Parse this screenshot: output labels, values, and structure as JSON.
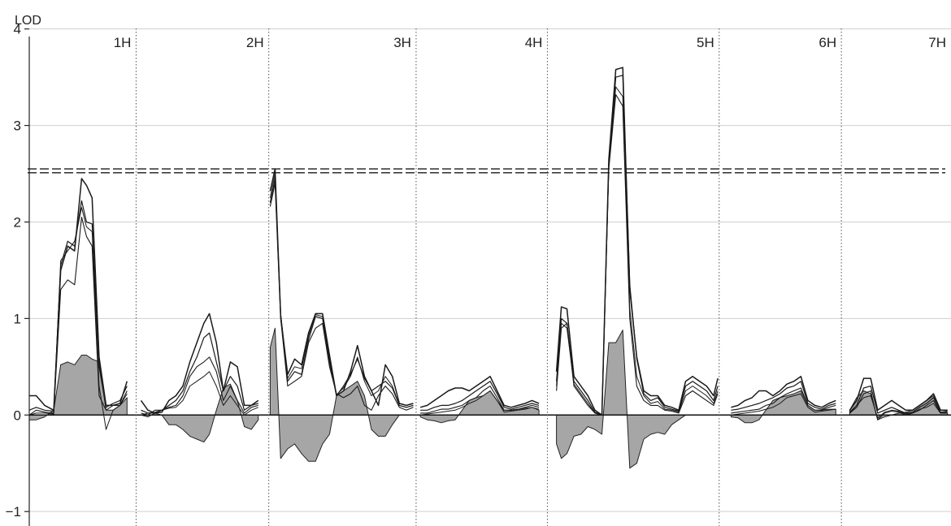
{
  "chart_data": {
    "type": "line",
    "ylabel": "LOD",
    "xlabel": "",
    "ylim": [
      -1.15,
      4.3
    ],
    "xlim": [
      0,
      13.2
    ],
    "yticks": [
      {
        "value": -1,
        "label": "−1"
      },
      {
        "value": 0,
        "label": "0"
      },
      {
        "value": 1,
        "label": "1"
      },
      {
        "value": 2,
        "label": "2"
      },
      {
        "value": 3,
        "label": "3"
      },
      {
        "value": 4,
        "label": "4"
      }
    ],
    "grid": true,
    "thresholds": [
      2.51,
      2.55
    ],
    "chromosomes": [
      {
        "label": "1H",
        "boundary": 1.53
      },
      {
        "label": "2H",
        "boundary": 3.43
      },
      {
        "label": "3H",
        "boundary": 5.54
      },
      {
        "label": "4H",
        "boundary": 7.42
      },
      {
        "label": "5H",
        "boundary": 9.88
      },
      {
        "label": "6H",
        "boundary": 11.63
      },
      {
        "label": "7H",
        "boundary": 13.2
      }
    ],
    "segments": [
      {
        "x": [
          0.0,
          0.1,
          0.22,
          0.35,
          0.45,
          0.55,
          0.65,
          0.75,
          0.82,
          0.9,
          1.0,
          1.1,
          1.2,
          1.3,
          1.4
        ],
        "s1": [
          0.2,
          0.2,
          0.1,
          0.05,
          1.5,
          1.75,
          1.7,
          2.45,
          2.38,
          2.25,
          0.6,
          0.1,
          0.1,
          0.12,
          0.35
        ],
        "s2": [
          0.05,
          0.08,
          0.05,
          0.04,
          1.55,
          1.8,
          1.75,
          2.22,
          2.0,
          1.98,
          0.5,
          0.08,
          0.12,
          0.15,
          0.3
        ],
        "s3": [
          0.0,
          0.05,
          0.03,
          0.02,
          1.3,
          1.4,
          1.35,
          2.05,
          1.85,
          1.75,
          0.2,
          0.05,
          0.1,
          0.1,
          0.25
        ],
        "s4": [
          0.0,
          0.02,
          0.02,
          0.01,
          1.6,
          1.7,
          1.8,
          2.15,
          1.95,
          1.9,
          0.3,
          -0.15,
          0.05,
          0.1,
          0.22
        ],
        "shade": [
          -0.05,
          -0.05,
          -0.02,
          0.05,
          0.52,
          0.55,
          0.52,
          0.62,
          0.62,
          0.58,
          0.55,
          0.05,
          0.05,
          0.1,
          0.18
        ]
      },
      {
        "x": [
          1.6,
          1.7,
          1.8,
          1.9,
          2.0,
          2.1,
          2.2,
          2.3,
          2.4,
          2.5,
          2.58,
          2.68,
          2.78,
          2.88,
          2.98,
          3.08,
          3.18,
          3.28
        ],
        "s1": [
          0.15,
          0.05,
          0.02,
          0.03,
          0.15,
          0.2,
          0.3,
          0.55,
          0.75,
          0.95,
          1.05,
          0.75,
          0.25,
          0.55,
          0.5,
          0.1,
          0.1,
          0.15
        ],
        "s2": [
          0.05,
          0.02,
          0.02,
          0.05,
          0.1,
          0.15,
          0.25,
          0.45,
          0.6,
          0.8,
          0.85,
          0.55,
          0.25,
          0.4,
          0.3,
          0.05,
          0.1,
          0.12
        ],
        "s3": [
          0.02,
          0.0,
          0.05,
          0.05,
          0.08,
          0.1,
          0.2,
          0.4,
          0.5,
          0.55,
          0.6,
          0.45,
          0.15,
          0.3,
          0.15,
          0.02,
          0.08,
          0.1
        ],
        "s4": [
          0.0,
          0.02,
          0.03,
          0.05,
          0.07,
          0.08,
          0.15,
          0.3,
          0.35,
          0.4,
          0.45,
          0.3,
          0.1,
          0.2,
          0.1,
          0.0,
          0.05,
          0.08
        ],
        "shade": [
          0.0,
          -0.02,
          0.02,
          0.0,
          -0.1,
          -0.1,
          -0.15,
          -0.22,
          -0.25,
          -0.28,
          -0.2,
          0.05,
          0.28,
          0.32,
          0.15,
          -0.12,
          -0.15,
          -0.05
        ]
      },
      {
        "x": [
          3.45,
          3.52,
          3.6,
          3.7,
          3.8,
          3.9,
          4.0,
          4.1,
          4.2,
          4.3,
          4.4,
          4.5,
          4.6,
          4.7,
          4.8,
          4.9,
          5.0,
          5.1,
          5.2,
          5.3,
          5.4,
          5.5
        ],
        "s1": [
          2.32,
          2.55,
          1.02,
          0.42,
          0.58,
          0.52,
          0.85,
          1.05,
          1.05,
          0.62,
          0.2,
          0.25,
          0.45,
          0.72,
          0.4,
          0.25,
          0.1,
          0.52,
          0.4,
          0.12,
          0.1,
          0.12
        ],
        "s2": [
          2.2,
          2.45,
          1.05,
          0.35,
          0.45,
          0.42,
          0.78,
          1.02,
          1.0,
          0.55,
          0.2,
          0.3,
          0.42,
          0.58,
          0.38,
          0.25,
          0.3,
          0.35,
          0.28,
          0.1,
          0.08,
          0.1
        ],
        "s3": [
          2.16,
          2.4,
          1.0,
          0.3,
          0.35,
          0.4,
          0.75,
          0.9,
          0.95,
          0.5,
          0.22,
          0.18,
          0.22,
          0.3,
          0.1,
          0.05,
          0.2,
          0.3,
          0.22,
          0.08,
          0.05,
          0.08
        ],
        "s4": [
          2.25,
          2.5,
          1.03,
          0.38,
          0.5,
          0.48,
          0.82,
          1.04,
          1.02,
          0.58,
          0.21,
          0.28,
          0.4,
          0.6,
          0.35,
          0.2,
          0.25,
          0.4,
          0.3,
          0.1,
          0.08,
          0.1
        ],
        "shade": [
          0.7,
          0.9,
          -0.45,
          -0.35,
          -0.3,
          -0.4,
          -0.48,
          -0.48,
          -0.3,
          -0.2,
          0.2,
          0.25,
          0.3,
          0.35,
          0.2,
          -0.15,
          -0.22,
          -0.22,
          -0.1,
          0.0,
          0.0,
          0.0
        ]
      },
      {
        "x": [
          5.6,
          5.7,
          5.8,
          5.9,
          6.0,
          6.1,
          6.2,
          6.3,
          6.4,
          6.5,
          6.6,
          6.7,
          6.8,
          6.9,
          7.0,
          7.1,
          7.2,
          7.3
        ],
        "s1": [
          0.08,
          0.1,
          0.15,
          0.2,
          0.25,
          0.28,
          0.28,
          0.25,
          0.3,
          0.35,
          0.4,
          0.25,
          0.1,
          0.08,
          0.1,
          0.12,
          0.15,
          0.12
        ],
        "s2": [
          0.05,
          0.05,
          0.08,
          0.1,
          0.1,
          0.12,
          0.15,
          0.2,
          0.25,
          0.3,
          0.35,
          0.22,
          0.08,
          0.06,
          0.08,
          0.1,
          0.12,
          0.1
        ],
        "s3": [
          0.02,
          0.02,
          0.04,
          0.06,
          0.06,
          0.08,
          0.1,
          0.15,
          0.18,
          0.25,
          0.3,
          0.18,
          0.05,
          0.05,
          0.06,
          0.08,
          0.1,
          0.08
        ],
        "s4": [
          0.0,
          0.01,
          0.02,
          0.03,
          0.04,
          0.05,
          0.08,
          0.12,
          0.15,
          0.2,
          0.25,
          0.15,
          0.03,
          0.04,
          0.05,
          0.06,
          0.08,
          0.06
        ],
        "shade": [
          -0.02,
          -0.05,
          -0.06,
          -0.08,
          -0.06,
          -0.05,
          0.05,
          0.15,
          0.18,
          0.2,
          0.25,
          0.15,
          0.05,
          0.05,
          0.06,
          0.07,
          0.08,
          0.05
        ]
      },
      {
        "x": [
          7.55,
          7.62,
          7.7,
          7.8,
          7.9,
          8.0,
          8.1,
          8.2,
          8.3,
          8.4,
          8.5,
          8.6,
          8.7,
          8.8,
          8.9,
          9.0,
          9.1,
          9.2,
          9.3,
          9.4,
          9.5,
          9.6,
          9.7,
          9.8,
          9.86
        ],
        "s1": [
          0.45,
          1.12,
          1.1,
          0.4,
          0.3,
          0.2,
          0.05,
          0.0,
          2.65,
          3.58,
          3.6,
          1.3,
          0.6,
          0.25,
          0.2,
          0.2,
          0.1,
          0.08,
          0.05,
          0.35,
          0.4,
          0.35,
          0.3,
          0.2,
          0.38
        ],
        "s2": [
          0.35,
          1.0,
          0.95,
          0.35,
          0.25,
          0.15,
          0.03,
          0.0,
          2.6,
          3.5,
          3.52,
          1.35,
          0.58,
          0.22,
          0.15,
          0.18,
          0.08,
          0.06,
          0.04,
          0.3,
          0.35,
          0.3,
          0.25,
          0.15,
          0.3
        ],
        "s3": [
          0.25,
          0.9,
          0.95,
          0.3,
          0.2,
          0.1,
          0.02,
          0.0,
          2.55,
          3.32,
          3.2,
          1.0,
          0.3,
          0.15,
          0.1,
          0.1,
          0.05,
          0.04,
          0.02,
          0.2,
          0.25,
          0.2,
          0.15,
          0.1,
          0.22
        ],
        "s4": [
          0.3,
          0.95,
          0.9,
          0.32,
          0.22,
          0.12,
          0.02,
          0.0,
          2.58,
          3.4,
          3.3,
          1.1,
          0.4,
          0.2,
          0.12,
          0.14,
          0.06,
          0.05,
          0.03,
          0.25,
          0.3,
          0.25,
          0.2,
          0.12,
          0.25
        ],
        "shade": [
          -0.3,
          -0.45,
          -0.4,
          -0.22,
          -0.2,
          -0.12,
          -0.15,
          -0.2,
          0.75,
          0.75,
          0.88,
          -0.55,
          -0.5,
          -0.25,
          -0.2,
          -0.18,
          -0.2,
          -0.1,
          -0.05,
          0.0,
          0.0,
          0.0,
          0.0,
          0.0,
          0.0
        ]
      },
      {
        "x": [
          10.05,
          10.15,
          10.25,
          10.35,
          10.45,
          10.55,
          10.65,
          10.75,
          10.85,
          10.95,
          11.05,
          11.15,
          11.25,
          11.35,
          11.45,
          11.55
        ],
        "s1": [
          0.08,
          0.1,
          0.15,
          0.18,
          0.25,
          0.25,
          0.2,
          0.25,
          0.32,
          0.35,
          0.4,
          0.15,
          0.1,
          0.08,
          0.12,
          0.15
        ],
        "s2": [
          0.05,
          0.06,
          0.08,
          0.1,
          0.12,
          0.15,
          0.18,
          0.22,
          0.28,
          0.3,
          0.35,
          0.12,
          0.08,
          0.06,
          0.1,
          0.12
        ],
        "s3": [
          0.02,
          0.03,
          0.04,
          0.05,
          0.06,
          0.1,
          0.12,
          0.18,
          0.22,
          0.25,
          0.28,
          0.1,
          0.05,
          0.05,
          0.08,
          0.1
        ],
        "s4": [
          0.0,
          0.01,
          0.02,
          0.03,
          0.04,
          0.06,
          0.08,
          0.12,
          0.18,
          0.2,
          0.22,
          0.08,
          0.03,
          0.04,
          0.05,
          0.06
        ],
        "shade": [
          -0.02,
          -0.03,
          -0.08,
          -0.08,
          -0.05,
          0.05,
          0.15,
          0.18,
          0.2,
          0.22,
          0.25,
          0.1,
          0.05,
          0.05,
          0.06,
          0.06
        ]
      },
      {
        "x": [
          11.75,
          11.85,
          11.95,
          12.05,
          12.15,
          12.25,
          12.35,
          12.45,
          12.55,
          12.65,
          12.75,
          12.85,
          12.95,
          13.05,
          13.15
        ],
        "s1": [
          0.05,
          0.15,
          0.38,
          0.38,
          0.05,
          0.1,
          0.15,
          0.1,
          0.05,
          0.05,
          0.1,
          0.15,
          0.22,
          0.05,
          0.05
        ],
        "s2": [
          0.03,
          0.1,
          0.28,
          0.3,
          0.02,
          0.05,
          0.08,
          0.05,
          0.02,
          0.03,
          0.08,
          0.12,
          0.18,
          0.03,
          0.04
        ],
        "s3": [
          0.02,
          0.08,
          0.22,
          0.25,
          -0.05,
          0.02,
          0.04,
          0.03,
          0.0,
          0.02,
          0.05,
          0.1,
          0.15,
          0.02,
          0.03
        ],
        "s4": [
          0.02,
          0.1,
          0.18,
          0.2,
          -0.03,
          0.03,
          0.05,
          0.04,
          0.01,
          0.02,
          0.06,
          0.08,
          0.12,
          0.02,
          0.02
        ],
        "shade": [
          0.05,
          0.18,
          0.25,
          0.22,
          -0.05,
          -0.02,
          0.0,
          0.02,
          0.03,
          0.05,
          0.1,
          0.15,
          0.2,
          0.02,
          0.02
        ]
      }
    ]
  }
}
